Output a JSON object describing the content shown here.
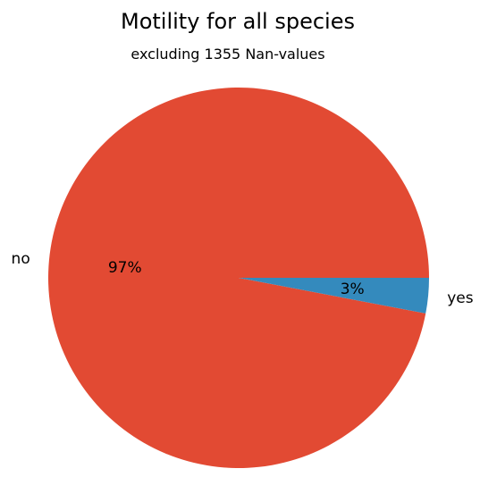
{
  "chart_data": {
    "type": "pie",
    "title": "Motility for all species",
    "subtitle": "excluding 1355 Nan-values",
    "slices": [
      {
        "label": "no",
        "value": 97,
        "pct_label": "97%",
        "color": "#E24A33"
      },
      {
        "label": "yes",
        "value": 3,
        "pct_label": "3%",
        "color": "#348ABD"
      }
    ],
    "start_angle_deg": 0,
    "direction": "counterclockwise",
    "legend": "none"
  }
}
